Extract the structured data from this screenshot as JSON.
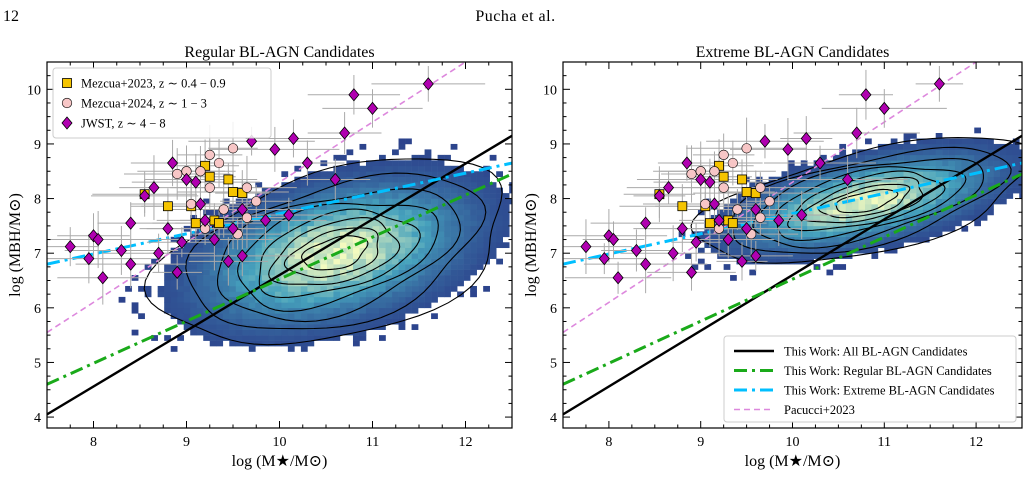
{
  "page_number": "12",
  "running_head": "Pucha et al.",
  "colors": {
    "all_fit": "#000000",
    "regular_fit": "#1aaa1a",
    "extreme_fit": "#00bfff",
    "pacucci": "#dd88dd",
    "mezcua2023": "#f5c400",
    "mezcua2024": "#f7c6c6",
    "jwst": "#b000b0",
    "density_low": "#2b3f8a",
    "density_mid": "#46a2bd",
    "density_high": "#f3fabf"
  },
  "chart_data": [
    {
      "type": "scatter",
      "panel": "left",
      "title": "Regular BL-AGN Candidates",
      "xlabel": "log (M★/M⊙)",
      "ylabel": "log (MBH/M⊙)",
      "xlim": [
        7.5,
        12.5
      ],
      "ylim": [
        3.8,
        10.5
      ],
      "xticks": [
        8,
        9,
        10,
        11,
        12
      ],
      "yticks": [
        4,
        5,
        6,
        7,
        8,
        9,
        10
      ],
      "legend": {
        "placement": "upper-left",
        "entries": [
          {
            "label": "Mezcua+2023, z ∼ 0.4 − 0.9",
            "marker": "square"
          },
          {
            "label": "Mezcua+2024, z ∼ 1 − 3",
            "marker": "circle"
          },
          {
            "label": "JWST, z ∼ 4 − 8",
            "marker": "diamond"
          }
        ]
      },
      "density": {
        "center": [
          10.6,
          7.0
        ],
        "spread": [
          0.6,
          0.7
        ],
        "tilt_deg": 38
      }
    },
    {
      "type": "scatter",
      "panel": "right",
      "title": "Extreme BL-AGN Candidates",
      "xlabel": "log (M★/M⊙)",
      "ylabel": "log (MBH/M⊙)",
      "xlim": [
        7.5,
        12.5
      ],
      "ylim": [
        3.8,
        10.5
      ],
      "xticks": [
        8,
        9,
        10,
        11,
        12
      ],
      "yticks": [
        4,
        5,
        6,
        7,
        8,
        9,
        10
      ],
      "legend": {
        "placement": "lower-right",
        "entries": [
          {
            "label": "This Work: All BL-AGN Candidates",
            "style": "solid",
            "color_key": "all_fit"
          },
          {
            "label": "This Work: Regular BL-AGN Candidates",
            "style": "dashdot",
            "color_key": "regular_fit"
          },
          {
            "label": "This Work: Extreme BL-AGN Candidates",
            "style": "dashdot",
            "color_key": "extreme_fit"
          },
          {
            "label": "Pacucci+2023",
            "style": "dashed",
            "color_key": "pacucci"
          }
        ]
      },
      "density": {
        "center": [
          10.8,
          7.95
        ],
        "spread": [
          0.55,
          0.45
        ],
        "tilt_deg": 25
      }
    }
  ],
  "relations": {
    "all": [
      [
        7.5,
        4.05
      ],
      [
        12.5,
        9.15
      ]
    ],
    "regular": [
      [
        7.5,
        4.6
      ],
      [
        12.5,
        8.45
      ]
    ],
    "extreme": [
      [
        7.5,
        6.8
      ],
      [
        12.5,
        8.65
      ]
    ],
    "pacucci": [
      [
        7.5,
        5.55
      ],
      [
        12.0,
        10.5
      ]
    ]
  },
  "literature_points": {
    "mezcua2023": [
      [
        8.55,
        8.08
      ],
      [
        8.8,
        7.86
      ],
      [
        9.2,
        8.6
      ],
      [
        9.25,
        8.4
      ],
      [
        9.3,
        7.6
      ],
      [
        9.05,
        7.86
      ],
      [
        9.35,
        7.55
      ],
      [
        9.5,
        8.12
      ],
      [
        9.1,
        7.55
      ],
      [
        9.6,
        8.1
      ],
      [
        9.45,
        8.35
      ]
    ],
    "mezcua2024": [
      [
        8.9,
        8.45
      ],
      [
        9.0,
        8.5
      ],
      [
        9.05,
        7.9
      ],
      [
        9.15,
        8.5
      ],
      [
        9.25,
        8.8
      ],
      [
        9.35,
        8.65
      ],
      [
        9.5,
        8.92
      ],
      [
        9.65,
        8.2
      ],
      [
        9.65,
        7.65
      ],
      [
        9.75,
        7.95
      ],
      [
        9.55,
        7.35
      ],
      [
        9.25,
        8.2
      ],
      [
        9.4,
        7.8
      ],
      [
        9.2,
        7.45
      ]
    ],
    "jwst": [
      [
        7.75,
        7.12
      ],
      [
        7.95,
        6.9
      ],
      [
        8.0,
        7.32
      ],
      [
        8.05,
        7.25
      ],
      [
        8.1,
        6.55
      ],
      [
        8.3,
        7.05
      ],
      [
        8.4,
        6.8
      ],
      [
        8.4,
        7.55
      ],
      [
        8.55,
        8.05
      ],
      [
        8.65,
        8.2
      ],
      [
        8.7,
        7.0
      ],
      [
        8.8,
        7.45
      ],
      [
        8.85,
        8.65
      ],
      [
        8.9,
        6.65
      ],
      [
        8.95,
        7.2
      ],
      [
        9.0,
        8.35
      ],
      [
        9.1,
        8.3
      ],
      [
        9.15,
        7.9
      ],
      [
        9.2,
        7.6
      ],
      [
        9.3,
        7.25
      ],
      [
        9.45,
        6.85
      ],
      [
        9.5,
        7.45
      ],
      [
        9.6,
        7.8
      ],
      [
        9.6,
        6.95
      ],
      [
        9.7,
        9.05
      ],
      [
        9.85,
        7.6
      ],
      [
        9.95,
        8.9
      ],
      [
        10.1,
        7.7
      ],
      [
        10.15,
        9.1
      ],
      [
        10.3,
        8.65
      ],
      [
        10.7,
        9.2
      ],
      [
        10.8,
        9.9
      ],
      [
        11.0,
        9.65
      ],
      [
        11.6,
        10.1
      ],
      [
        10.6,
        8.35
      ]
    ]
  }
}
